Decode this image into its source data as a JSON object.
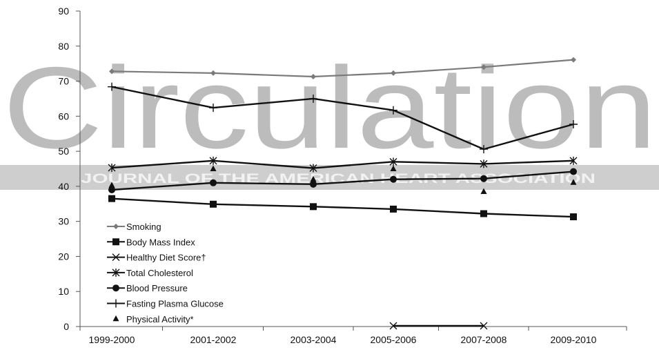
{
  "watermark": {
    "title": "Circulation",
    "subtitle": "JOURNAL OF THE AMERICAN HEART ASSOCIATION"
  },
  "chart_data": {
    "type": "line",
    "categories": [
      "1999-2000",
      "2001-2002",
      "2003-2004",
      "2005-2006",
      "2007-2008",
      "2009-2010"
    ],
    "ylim": [
      0,
      90
    ],
    "yticks": [
      0,
      10,
      20,
      30,
      40,
      50,
      60,
      70,
      80,
      90
    ],
    "grid": false,
    "legend_position": "bottom-left",
    "series": [
      {
        "name": "Smoking",
        "marker": "diamond",
        "color": "#7a7a7a",
        "line": true,
        "values": [
          72.8,
          72.3,
          71.3,
          72.3,
          74.0,
          76.1
        ]
      },
      {
        "name": "Body Mass Index",
        "marker": "square",
        "color": "#111111",
        "line": true,
        "values": [
          36.5,
          34.9,
          34.2,
          33.5,
          32.2,
          31.3
        ]
      },
      {
        "name": "Healthy Diet Score†",
        "marker": "x",
        "color": "#111111",
        "line": true,
        "values": [
          null,
          null,
          null,
          0.2,
          0.2,
          null
        ]
      },
      {
        "name": "Total Cholesterol",
        "marker": "asterisk",
        "color": "#111111",
        "line": true,
        "values": [
          45.3,
          47.3,
          45.2,
          47.0,
          46.4,
          47.3
        ]
      },
      {
        "name": "Blood Pressure",
        "marker": "circle",
        "color": "#111111",
        "line": true,
        "values": [
          39.0,
          41.0,
          40.6,
          42.0,
          42.2,
          44.2
        ]
      },
      {
        "name": "Fasting Plasma Glucose",
        "marker": "plus",
        "color": "#111111",
        "line": true,
        "values": [
          68.4,
          62.4,
          65.0,
          61.7,
          50.6,
          57.7
        ]
      },
      {
        "name": "Physical Activity*",
        "marker": "triangle",
        "color": "#111111",
        "line": false,
        "values": [
          40.3,
          45.0,
          42.0,
          45.0,
          38.5,
          41.1
        ]
      }
    ]
  }
}
